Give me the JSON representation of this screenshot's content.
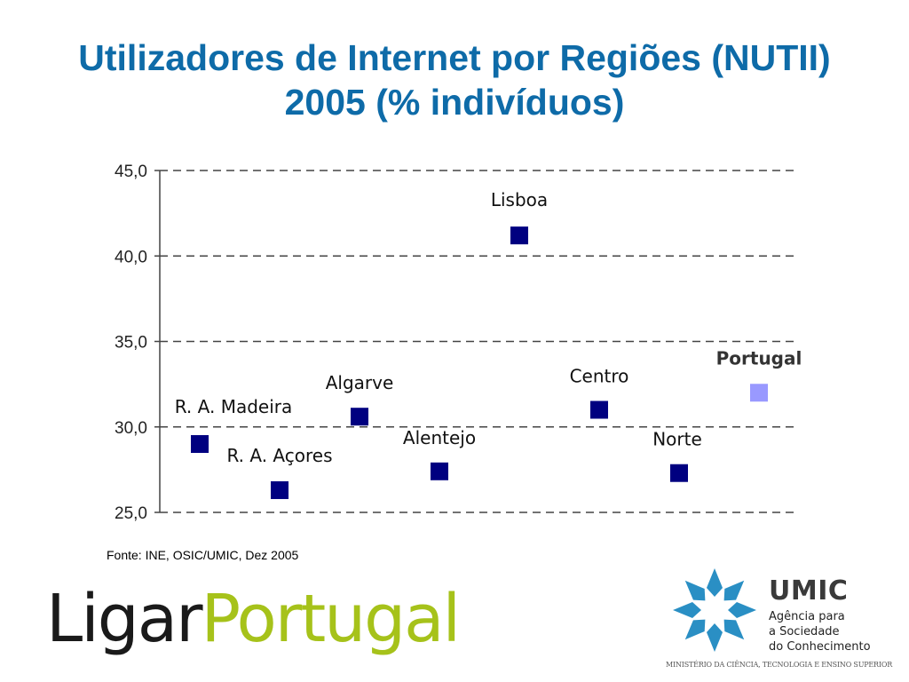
{
  "title_line1": "Utilizadores de Internet por Regiões (NUTII)",
  "title_line2": "2005 (% indivíduos)",
  "source": "Fonte: INE, OSIC/UMIC, Dez 2005",
  "logos": {
    "ligar_part1": "Ligar",
    "ligar_part2": "Portugal",
    "umic_name": "UMIC",
    "umic_sub1": "Agência para",
    "umic_sub2": "a Sociedade",
    "umic_sub3": "do Conhecimento",
    "ministry": "MINISTÉRIO DA CIÊNCIA, TECNOLOGIA E ENSINO SUPERIOR"
  },
  "colors": {
    "title": "#0e6ba8",
    "region_marker": "#000080",
    "portugal_marker": "#9999ff",
    "grid": "#444444",
    "ligar_dark": "#1a1a1a",
    "ligar_green": "#a6c21a",
    "umic_blue": "#2a8fc4"
  },
  "chart_data": {
    "type": "scatter",
    "ylim": [
      25,
      45
    ],
    "yticks": [
      "25,0",
      "30,0",
      "35,0",
      "40,0",
      "45,0"
    ],
    "ytick_values": [
      25,
      30,
      35,
      40,
      45
    ],
    "grid": true,
    "points": [
      {
        "label": "R. A. Madeira",
        "y": 29.0,
        "highlight": false
      },
      {
        "label": "R. A. Açores",
        "y": 26.3,
        "highlight": false
      },
      {
        "label": "Algarve",
        "y": 30.6,
        "highlight": false
      },
      {
        "label": "Alentejo",
        "y": 27.4,
        "highlight": false
      },
      {
        "label": "Lisboa",
        "y": 41.2,
        "highlight": false
      },
      {
        "label": "Centro",
        "y": 31.0,
        "highlight": false
      },
      {
        "label": "Norte",
        "y": 27.3,
        "highlight": false
      },
      {
        "label": "Portugal",
        "y": 32.0,
        "highlight": true
      }
    ]
  }
}
